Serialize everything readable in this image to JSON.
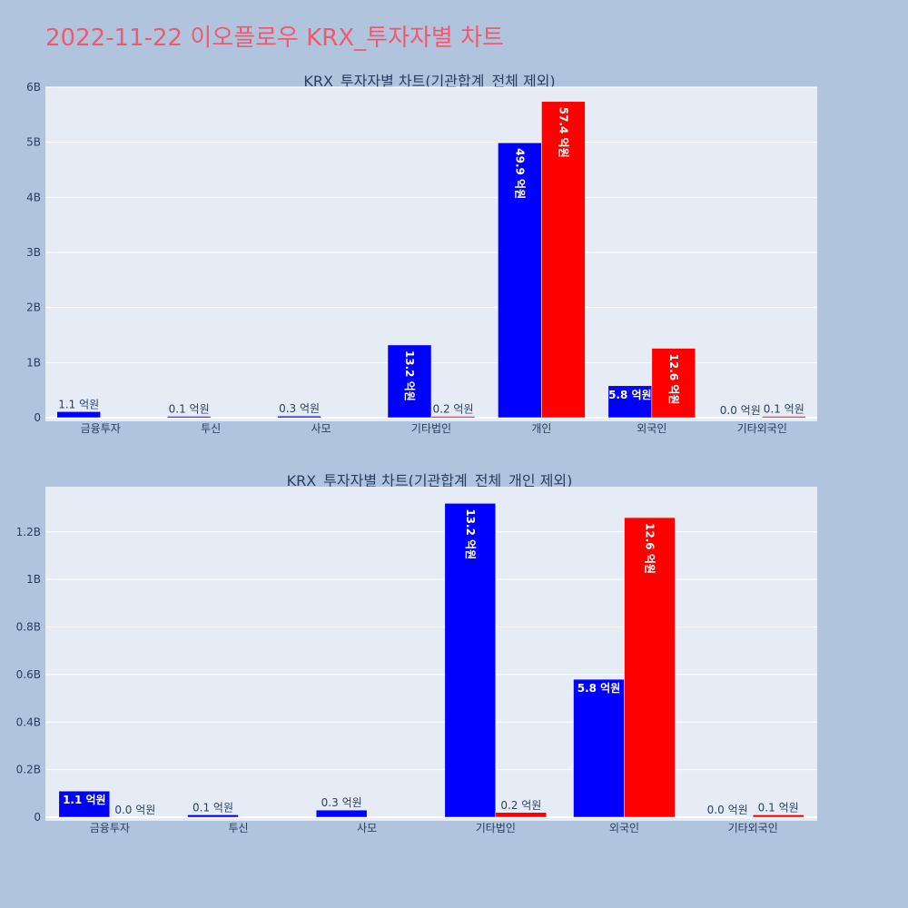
{
  "page_title": "2022-11-22 이오플로우 KRX_투자자별 차트",
  "colors": {
    "series_a": "#0000ff",
    "series_b": "#ff0000",
    "plot_bg": "#e5ecf6",
    "page_bg": "#b0c4de",
    "title": "#ef5a6f"
  },
  "chart_data": [
    {
      "type": "bar",
      "title": "KRX_투자자별 차트(기관합계_전체 제외)",
      "categories": [
        "금융투자",
        "투신",
        "사모",
        "기타법인",
        "개인",
        "외국인",
        "기타외국인"
      ],
      "series": [
        {
          "color": "#0000ff",
          "values": [
            110000000,
            10000000,
            30000000,
            1320000000,
            4990000000,
            580000000,
            0
          ],
          "labels": [
            "1.1 억원",
            "0.1 억원",
            "0.3 억원",
            "13.2 억원",
            "49.9 억원",
            "5.8 억원",
            "0.0 억원"
          ]
        },
        {
          "color": "#ff0000",
          "values": [
            null,
            null,
            null,
            20000000,
            5740000000,
            1260000000,
            10000000
          ],
          "labels": [
            null,
            null,
            null,
            "0.2 억원",
            "57.4 억원",
            "12.6 억원",
            "0.1 억원"
          ]
        }
      ],
      "ylim": [
        0,
        6000000000
      ],
      "y_ticks": [
        0,
        1000000000,
        2000000000,
        3000000000,
        4000000000,
        5000000000,
        6000000000
      ],
      "y_tick_labels": [
        "0",
        "1B",
        "2B",
        "3B",
        "4B",
        "5B",
        "6B"
      ],
      "grid": true
    },
    {
      "type": "bar",
      "title": "KRX_투자자별 차트(기관합계_전체_개인 제외)",
      "categories": [
        "금융투자",
        "투신",
        "사모",
        "기타법인",
        "외국인",
        "기타외국인"
      ],
      "series": [
        {
          "color": "#0000ff",
          "values": [
            110000000,
            10000000,
            30000000,
            1320000000,
            580000000,
            0
          ],
          "labels": [
            "1.1 억원",
            "0.1 억원",
            "0.3 억원",
            "13.2 억원",
            "5.8 억원",
            "0.0 억원"
          ]
        },
        {
          "color": "#ff0000",
          "values": [
            0,
            null,
            null,
            20000000,
            1260000000,
            10000000
          ],
          "labels": [
            "0.0 억원",
            null,
            null,
            "0.2 억원",
            "12.6 억원",
            "0.1 억원"
          ]
        }
      ],
      "ylim": [
        0,
        1390000000
      ],
      "y_ticks": [
        0,
        200000000,
        400000000,
        600000000,
        800000000,
        1000000000,
        1200000000
      ],
      "y_tick_labels": [
        "0",
        "0.2B",
        "0.4B",
        "0.6B",
        "0.8B",
        "1B",
        "1.2B"
      ],
      "grid": true
    }
  ]
}
